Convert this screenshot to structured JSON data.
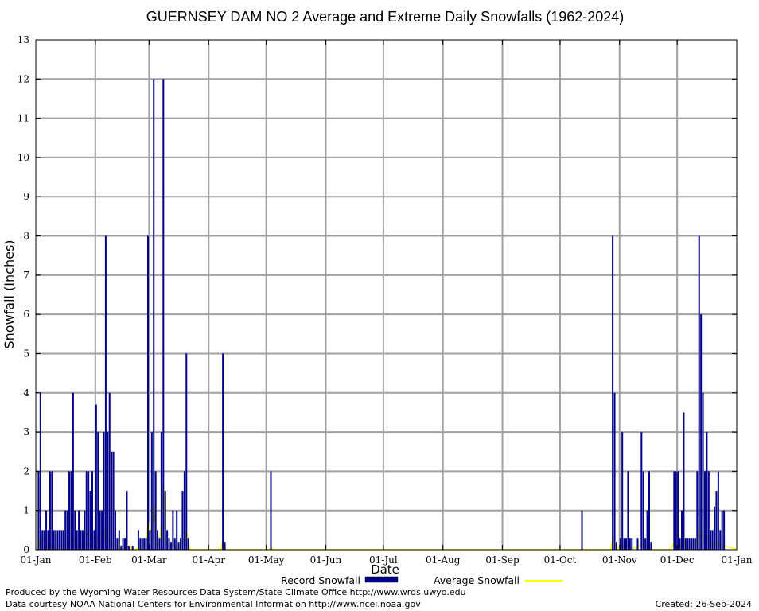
{
  "chart_data": {
    "type": "bar",
    "title": "GUERNSEY DAM NO 2 Average and Extreme Daily Snowfalls (1962-2024)",
    "xlabel": "Date",
    "ylabel": "Snowfall (Inches)",
    "ylim": [
      0,
      13
    ],
    "yticks": [
      "0",
      "1",
      "2",
      "3",
      "4",
      "5",
      "6",
      "7",
      "8",
      "9",
      "10",
      "11",
      "12",
      "13"
    ],
    "xticks": [
      "01-Jan",
      "01-Feb",
      "01-Mar",
      "01-Apr",
      "01-May",
      "01-Jun",
      "01-Jul",
      "01-Aug",
      "01-Sep",
      "01-Oct",
      "01-Nov",
      "01-Dec",
      "01-Jan"
    ],
    "xtick_days": [
      0,
      31,
      59,
      90,
      120,
      151,
      181,
      212,
      243,
      273,
      304,
      334,
      365
    ],
    "grid": true,
    "legend_position": "bottom",
    "series": [
      {
        "name": "Record Snowfall",
        "color": "#00008b",
        "points": [
          [
            1,
            2
          ],
          [
            2,
            4
          ],
          [
            3,
            0.5
          ],
          [
            4,
            0.5
          ],
          [
            5,
            1
          ],
          [
            6,
            0.5
          ],
          [
            7,
            2
          ],
          [
            8,
            2
          ],
          [
            9,
            0.5
          ],
          [
            10,
            0.5
          ],
          [
            11,
            0.5
          ],
          [
            12,
            0.5
          ],
          [
            13,
            0.5
          ],
          [
            14,
            0.5
          ],
          [
            15,
            1
          ],
          [
            16,
            1
          ],
          [
            17,
            2
          ],
          [
            18,
            2
          ],
          [
            19,
            4
          ],
          [
            20,
            1
          ],
          [
            21,
            0.5
          ],
          [
            22,
            1
          ],
          [
            23,
            0.5
          ],
          [
            24,
            0.5
          ],
          [
            25,
            1
          ],
          [
            26,
            2
          ],
          [
            27,
            2
          ],
          [
            28,
            1.5
          ],
          [
            29,
            2
          ],
          [
            30,
            0.5
          ],
          [
            31,
            3.7
          ],
          [
            32,
            3
          ],
          [
            33,
            1
          ],
          [
            34,
            1
          ],
          [
            35,
            3
          ],
          [
            36,
            8
          ],
          [
            37,
            3
          ],
          [
            38,
            4
          ],
          [
            39,
            2.5
          ],
          [
            40,
            2.5
          ],
          [
            41,
            1
          ],
          [
            42,
            0.3
          ],
          [
            43,
            0.5
          ],
          [
            44,
            0.1
          ],
          [
            45,
            0.3
          ],
          [
            46,
            0.3
          ],
          [
            47,
            1.5
          ],
          [
            48,
            0.1
          ],
          [
            50,
            0.1
          ],
          [
            53,
            0.5
          ],
          [
            54,
            0.3
          ],
          [
            55,
            0.3
          ],
          [
            56,
            0.3
          ],
          [
            57,
            0.3
          ],
          [
            58,
            8
          ],
          [
            59,
            0.5
          ],
          [
            60,
            3
          ],
          [
            61,
            12
          ],
          [
            62,
            2
          ],
          [
            63,
            0.5
          ],
          [
            64,
            0.3
          ],
          [
            65,
            3
          ],
          [
            66,
            12
          ],
          [
            67,
            1.5
          ],
          [
            68,
            0.5
          ],
          [
            69,
            0.3
          ],
          [
            70,
            0.2
          ],
          [
            71,
            1
          ],
          [
            72,
            0.3
          ],
          [
            73,
            1
          ],
          [
            74,
            0.2
          ],
          [
            75,
            0.3
          ],
          [
            76,
            1.5
          ],
          [
            77,
            2
          ],
          [
            78,
            5
          ],
          [
            79,
            0.3
          ],
          [
            97,
            5
          ],
          [
            98,
            0.2
          ],
          [
            122,
            2
          ],
          [
            284,
            1
          ],
          [
            300,
            8
          ],
          [
            301,
            4
          ],
          [
            302,
            0.2
          ],
          [
            304,
            0.3
          ],
          [
            305,
            3
          ],
          [
            306,
            0.3
          ],
          [
            307,
            0.3
          ],
          [
            308,
            2
          ],
          [
            309,
            0.3
          ],
          [
            310,
            0.3
          ],
          [
            313,
            0.3
          ],
          [
            315,
            3
          ],
          [
            316,
            2
          ],
          [
            317,
            0.3
          ],
          [
            318,
            1
          ],
          [
            319,
            2
          ],
          [
            320,
            0.2
          ],
          [
            332,
            2
          ],
          [
            333,
            2
          ],
          [
            334,
            2
          ],
          [
            335,
            0.3
          ],
          [
            336,
            1
          ],
          [
            337,
            3.5
          ],
          [
            338,
            0.3
          ],
          [
            339,
            0.3
          ],
          [
            340,
            0.3
          ],
          [
            341,
            0.3
          ],
          [
            342,
            0.3
          ],
          [
            343,
            0.3
          ],
          [
            344,
            2
          ],
          [
            345,
            8
          ],
          [
            346,
            6
          ],
          [
            347,
            4
          ],
          [
            348,
            2
          ],
          [
            349,
            3
          ],
          [
            350,
            2
          ],
          [
            351,
            0.5
          ],
          [
            352,
            0.5
          ],
          [
            353,
            1.1
          ],
          [
            354,
            1.5
          ],
          [
            355,
            2
          ],
          [
            356,
            0.5
          ],
          [
            357,
            1
          ],
          [
            358,
            1
          ]
        ]
      },
      {
        "name": "Average Snowfall",
        "color": "#ffff00",
        "points": [
          [
            0,
            0
          ],
          [
            1,
            0.05
          ],
          [
            2,
            0.3
          ],
          [
            3,
            0.1
          ],
          [
            5,
            0.05
          ],
          [
            7,
            0.15
          ],
          [
            8,
            0.05
          ],
          [
            10,
            0.05
          ],
          [
            12,
            0.1
          ],
          [
            14,
            0.05
          ],
          [
            16,
            0.1
          ],
          [
            17,
            0.2
          ],
          [
            19,
            0.3
          ],
          [
            20,
            0.15
          ],
          [
            22,
            0.05
          ],
          [
            24,
            0.1
          ],
          [
            26,
            0.15
          ],
          [
            28,
            0.1
          ],
          [
            30,
            0.2
          ],
          [
            31,
            0.3
          ],
          [
            32,
            0.2
          ],
          [
            34,
            0.15
          ],
          [
            35,
            0.2
          ],
          [
            36,
            0.6
          ],
          [
            37,
            0.3
          ],
          [
            38,
            0.2
          ],
          [
            40,
            0.1
          ],
          [
            42,
            0.05
          ],
          [
            43,
            0.05
          ],
          [
            44,
            0.1
          ],
          [
            46,
            0.05
          ],
          [
            48,
            0.1
          ],
          [
            50,
            0
          ],
          [
            55,
            0.05
          ],
          [
            57,
            0.2
          ],
          [
            58,
            0.75
          ],
          [
            59,
            0.4
          ],
          [
            60,
            0.6
          ],
          [
            61,
            1.25
          ],
          [
            62,
            0.2
          ],
          [
            63,
            0.1
          ],
          [
            64,
            0.2
          ],
          [
            65,
            0.8
          ],
          [
            66,
            1.65
          ],
          [
            67,
            0.3
          ],
          [
            68,
            0.1
          ],
          [
            70,
            0.05
          ],
          [
            71,
            0.15
          ],
          [
            72,
            0.05
          ],
          [
            74,
            0.05
          ],
          [
            76,
            0.2
          ],
          [
            77,
            0.3
          ],
          [
            78,
            0.5
          ],
          [
            79,
            0.15
          ],
          [
            80,
            0
          ],
          [
            96,
            0
          ],
          [
            97,
            0.3
          ],
          [
            98,
            0
          ],
          [
            121,
            0
          ],
          [
            122,
            0.05
          ],
          [
            123,
            0
          ],
          [
            284,
            0
          ],
          [
            299,
            0
          ],
          [
            300,
            0.3
          ],
          [
            301,
            0.15
          ],
          [
            302,
            0.05
          ],
          [
            304,
            0.05
          ],
          [
            305,
            0.15
          ],
          [
            306,
            0.05
          ],
          [
            308,
            0.15
          ],
          [
            309,
            0.05
          ],
          [
            313,
            0.05
          ],
          [
            315,
            0.15
          ],
          [
            316,
            0.1
          ],
          [
            318,
            0.05
          ],
          [
            319,
            0.15
          ],
          [
            320,
            0
          ],
          [
            330,
            0
          ],
          [
            332,
            0.2
          ],
          [
            334,
            0.1
          ],
          [
            335,
            0.05
          ],
          [
            336,
            0.2
          ],
          [
            337,
            0.3
          ],
          [
            338,
            0.05
          ],
          [
            340,
            0.05
          ],
          [
            342,
            0.05
          ],
          [
            344,
            0.3
          ],
          [
            345,
            0.6
          ],
          [
            346,
            0.45
          ],
          [
            347,
            0.3
          ],
          [
            348,
            0.15
          ],
          [
            349,
            0.35
          ],
          [
            350,
            0.2
          ],
          [
            351,
            0.05
          ],
          [
            353,
            0.15
          ],
          [
            355,
            0.2
          ],
          [
            356,
            0.05
          ],
          [
            358,
            0.1
          ],
          [
            365,
            0
          ]
        ]
      }
    ]
  },
  "footer": {
    "produced_by": "Produced by the Wyoming Water Resources Data System/State Climate Office http://www.wrds.uwyo.edu",
    "courtesy": "Data courtesy NOAA National Centers for Environmental Information http://www.ncei.noaa.gov",
    "created": "Created:  26-Sep-2024"
  }
}
